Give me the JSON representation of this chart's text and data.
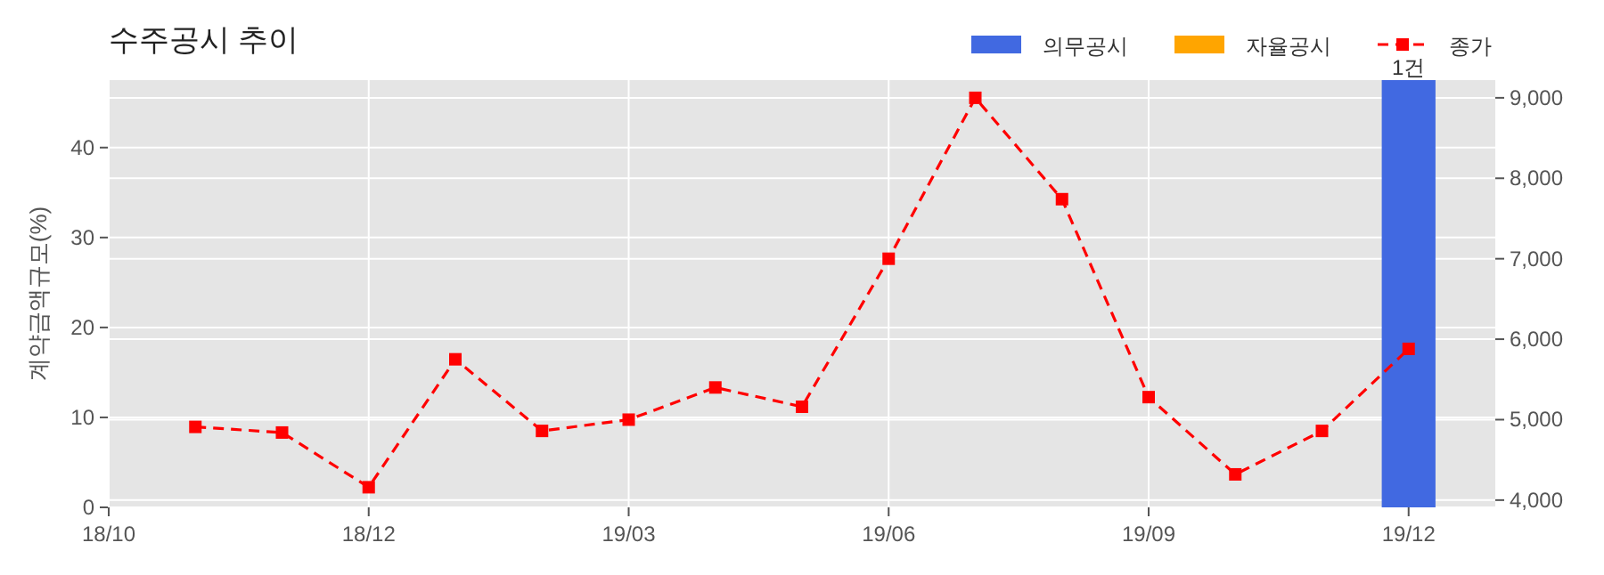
{
  "chart_data": {
    "type": "bar",
    "title": "수주공시 추이",
    "ylabel": "계약금액규모(%)",
    "categories": [
      "18/10",
      null,
      null,
      "18/12",
      null,
      null,
      "19/03",
      null,
      null,
      "19/06",
      null,
      null,
      "19/09",
      null,
      null,
      "19/12"
    ],
    "ylim": [
      0,
      47.5
    ],
    "yticks": [
      0,
      10,
      20,
      30,
      40
    ],
    "y2lim": [
      3910,
      9220
    ],
    "y2ticks": [
      {
        "value": 4000,
        "label": "4,000"
      },
      {
        "value": 5000,
        "label": "5,000"
      },
      {
        "value": 6000,
        "label": "6,000"
      },
      {
        "value": 7000,
        "label": "7,000"
      },
      {
        "value": 8000,
        "label": "8,000"
      },
      {
        "value": 9000,
        "label": "9,000"
      }
    ],
    "grid": true,
    "legend": "top right",
    "annotations": [
      {
        "text": "1건",
        "x": "19/12",
        "y": 47.5
      }
    ],
    "series": [
      {
        "name": "의무공시",
        "color": "#4169e1",
        "values": [
          null,
          null,
          null,
          null,
          null,
          null,
          null,
          null,
          null,
          null,
          null,
          null,
          null,
          null,
          null,
          47.5
        ]
      },
      {
        "name": "자율공시",
        "color": "#ffa500",
        "values": [
          null,
          null,
          null,
          null,
          null,
          null,
          null,
          null,
          null,
          null,
          null,
          null,
          null,
          null,
          null,
          null
        ]
      },
      {
        "name": "종가",
        "type": "line",
        "axis": "y2",
        "color": "#ff0000",
        "marker": "square",
        "line_style": "dashed",
        "values": [
          null,
          4910,
          4840,
          4160,
          5750,
          4860,
          5000,
          5400,
          5160,
          7000,
          9000,
          7740,
          5280,
          4320,
          4860,
          5880
        ]
      }
    ]
  }
}
